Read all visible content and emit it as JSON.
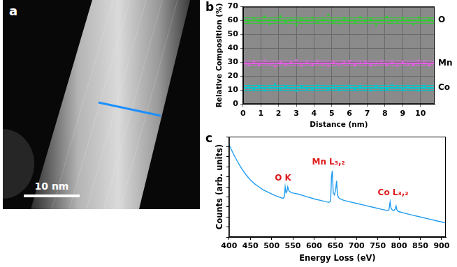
{
  "image": {
    "label": "a",
    "scale_bar": "10 nm"
  },
  "chart_data": [
    {
      "label": "b",
      "type": "scatter",
      "x_label": "Distance (nm)",
      "y_label": "Relative Composition (%)",
      "xlim": [
        0,
        10.8
      ],
      "xticks": [
        0,
        1,
        2,
        3,
        4,
        5,
        6,
        7,
        8,
        9,
        10
      ],
      "ylim": [
        0,
        70
      ],
      "yticks": [
        0,
        10,
        20,
        30,
        40,
        50,
        60,
        70
      ],
      "grid": true,
      "x": [
        0,
        0.3,
        0.6,
        0.9,
        1.2,
        1.5,
        1.8,
        2.1,
        2.4,
        2.7,
        3,
        3.3,
        3.6,
        3.9,
        4.2,
        4.5,
        4.8,
        5.1,
        5.4,
        5.7,
        6,
        6.3,
        6.6,
        6.9,
        7.2,
        7.5,
        7.8,
        8.1,
        8.4,
        8.7,
        9,
        9.3,
        9.6,
        9.9,
        10.2,
        10.5,
        10.8
      ],
      "series": [
        {
          "name": "O",
          "color": "#2ecc2e",
          "mean": 60.1,
          "band": [
            58,
            62
          ],
          "values": [
            60.5,
            58.2,
            61.9,
            59.4,
            62.8,
            57.6,
            60.1,
            63.2,
            58.9,
            60.7,
            56.8,
            61.4,
            59.8,
            62.1,
            58.3,
            60.9,
            64.0,
            59.1,
            57.9,
            61.6,
            60.2,
            58.7,
            62.5,
            59.6,
            61.0,
            56.5,
            60.4,
            62.9,
            59.3,
            58.1,
            61.8,
            60.6,
            57.4,
            62.2,
            59.9,
            60.8,
            58.6
          ]
        },
        {
          "name": "Mn",
          "color": "#e060e0",
          "mean": 29.2,
          "band": [
            27.5,
            31
          ],
          "values": [
            29.3,
            27.8,
            30.6,
            28.4,
            31.2,
            29.0,
            26.9,
            30.1,
            28.7,
            29.9,
            31.5,
            27.5,
            29.6,
            28.2,
            30.8,
            29.1,
            27.2,
            30.3,
            28.9,
            29.7,
            31.0,
            28.0,
            29.4,
            30.5,
            27.7,
            29.2,
            30.9,
            28.5,
            29.8,
            27.4,
            30.2,
            29.0,
            28.3,
            31.3,
            29.5,
            28.1,
            30.0
          ]
        },
        {
          "name": "Co",
          "color": "#00c8d0",
          "mean": 11.6,
          "band": [
            9.8,
            13.4
          ],
          "values": [
            11.2,
            13.1,
            10.4,
            12.3,
            9.8,
            11.9,
            14.2,
            10.9,
            12.6,
            11.4,
            9.5,
            12.8,
            11.1,
            10.2,
            13.4,
            11.7,
            10.6,
            12.1,
            9.9,
            11.5,
            13.0,
            10.8,
            12.4,
            11.3,
            9.7,
            12.9,
            11.0,
            10.5,
            13.6,
            11.8,
            10.1,
            12.2,
            11.6,
            9.6,
            12.7,
            11.2,
            10.9
          ]
        }
      ]
    },
    {
      "label": "c",
      "type": "line",
      "x_label": "Energy Loss (eV)",
      "y_label": "Counts (arb. units)",
      "xlim": [
        400,
        910
      ],
      "xticks": [
        400,
        450,
        500,
        550,
        600,
        650,
        700,
        750,
        800,
        850,
        900
      ],
      "ylim": [
        0,
        100
      ],
      "tick_labels": "x",
      "grid": false,
      "x": [
        400,
        410,
        420,
        430,
        440,
        450,
        460,
        470,
        480,
        490,
        500,
        510,
        520,
        527,
        530,
        532,
        534,
        536,
        538,
        541,
        544,
        548,
        555,
        565,
        580,
        600,
        620,
        635,
        639,
        641,
        643,
        645,
        648,
        651,
        653,
        655,
        658,
        662,
        670,
        685,
        700,
        720,
        740,
        760,
        772,
        776,
        779,
        781,
        784,
        788,
        791,
        793,
        795,
        798,
        802,
        815,
        830,
        850,
        870,
        890,
        910
      ],
      "series": [
        {
          "color": "#1f9cf0",
          "values": [
            92,
            83,
            75,
            68,
            62,
            57,
            53,
            50,
            47,
            45,
            43,
            41,
            39.5,
            38.5,
            40,
            50,
            44,
            45,
            50,
            46,
            45,
            44,
            43.5,
            42.5,
            40.5,
            38,
            36,
            34.5,
            36,
            60,
            66,
            44,
            42,
            48,
            56,
            42,
            39,
            38,
            36.5,
            35,
            33.5,
            31.5,
            29.5,
            27.5,
            26.5,
            27,
            35,
            29,
            27,
            26.5,
            28,
            31,
            27,
            25.5,
            25,
            23.5,
            22,
            20,
            18,
            16,
            14
          ]
        }
      ],
      "annotations": [
        {
          "text": "O K",
          "x": 527,
          "y": 54
        },
        {
          "text": "Mn L₃,₂",
          "x": 634,
          "y": 70
        },
        {
          "text": "Co L₃,₂",
          "x": 786,
          "y": 40
        }
      ]
    }
  ]
}
